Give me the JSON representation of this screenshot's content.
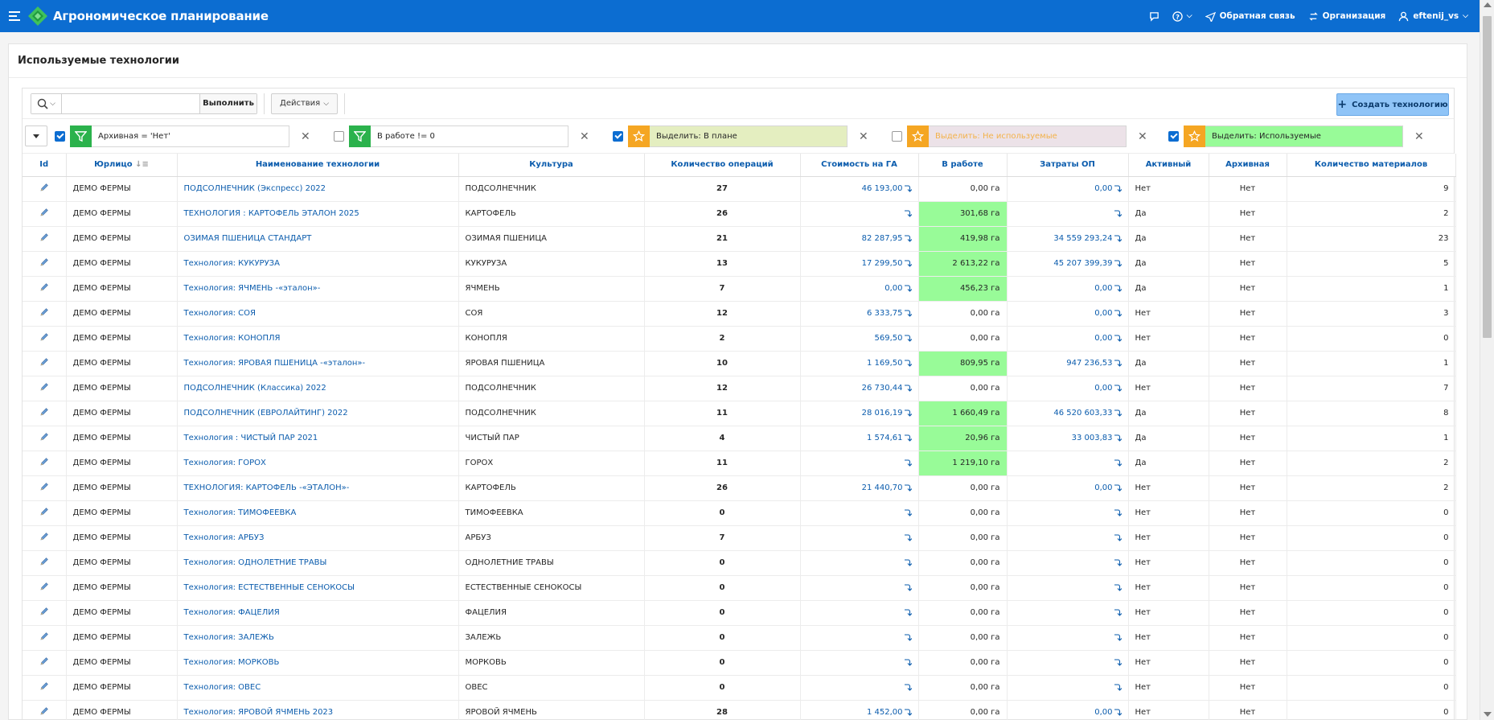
{
  "app": {
    "title": "Агрономическое планирование"
  },
  "topbar": {
    "feedback": "Обратная связь",
    "org": "Организация",
    "user": "eftenij_vs"
  },
  "region": {
    "title": "Используемые технологии"
  },
  "toolbar": {
    "search_placeholder": "",
    "go": "Выполнить",
    "actions": "Действия",
    "create": "Создать технологию"
  },
  "filters": [
    {
      "checked": true,
      "type": "filter",
      "text": "Архивная = 'Нет'",
      "bg": "#ffffff",
      "color": "#262626"
    },
    {
      "checked": false,
      "type": "filter",
      "text": "В работе != 0",
      "bg": "#ffffff",
      "color": "#262626"
    },
    {
      "checked": true,
      "type": "highlight",
      "text": "Выделить: В плане",
      "bg": "#e4eec0",
      "color": "#262626"
    },
    {
      "checked": false,
      "type": "highlight",
      "text": "Выделить: Не используемые",
      "bg": "#ece2e8",
      "color": "#f3b24a"
    },
    {
      "checked": true,
      "type": "highlight",
      "text": "Выделить: Используемые",
      "bg": "#98fb98",
      "color": "#262626"
    }
  ],
  "columns": [
    "Id",
    "Юрлицо",
    "Наименование технологии",
    "Культура",
    "Количество операций",
    "Стоимость на ГА",
    "В работе",
    "Затраты ОП",
    "Активный",
    "Архивная",
    "Количество материалов"
  ],
  "rows": [
    {
      "org": "ДЕМО ФЕРМЫ",
      "name": "ПОДСОЛНЕЧНИК (Экспресс) 2022",
      "crop": "ПОДСОЛНЕЧНИК",
      "ops": "27",
      "cost": "46 193,00",
      "work": "0,00 га",
      "hl": false,
      "exp": "0,00",
      "active": "Нет",
      "arch": "Нет",
      "mat": "9"
    },
    {
      "org": "ДЕМО ФЕРМЫ",
      "name": "ТЕХНОЛОГИЯ : КАРТОФЕЛЬ ЭТАЛОН 2025",
      "crop": "КАРТОФЕЛЬ",
      "ops": "26",
      "cost": "",
      "work": "301,68 га",
      "hl": true,
      "exp": "",
      "active": "Да",
      "arch": "Нет",
      "mat": "2"
    },
    {
      "org": "ДЕМО ФЕРМЫ",
      "name": "ОЗИМАЯ ПШЕНИЦА СТАНДАРТ",
      "crop": "ОЗИМАЯ ПШЕНИЦА",
      "ops": "21",
      "cost": "82 287,95",
      "work": "419,98 га",
      "hl": true,
      "exp": "34 559 293,24",
      "active": "Да",
      "arch": "Нет",
      "mat": "23"
    },
    {
      "org": "ДЕМО ФЕРМЫ",
      "name": "Технология: КУКУРУЗА",
      "crop": "КУКУРУЗА",
      "ops": "13",
      "cost": "17 299,50",
      "work": "2 613,22 га",
      "hl": true,
      "exp": "45 207 399,39",
      "active": "Да",
      "arch": "Нет",
      "mat": "5"
    },
    {
      "org": "ДЕМО ФЕРМЫ",
      "name": "Технология: ЯЧМЕНЬ -«эталон»-",
      "crop": "ЯЧМЕНЬ",
      "ops": "7",
      "cost": "0,00",
      "work": "456,23 га",
      "hl": true,
      "exp": "0,00",
      "active": "Да",
      "arch": "Нет",
      "mat": "1"
    },
    {
      "org": "ДЕМО ФЕРМЫ",
      "name": "Технология: СОЯ",
      "crop": "СОЯ",
      "ops": "12",
      "cost": "6 333,75",
      "work": "0,00 га",
      "hl": false,
      "exp": "0,00",
      "active": "Нет",
      "arch": "Нет",
      "mat": "3"
    },
    {
      "org": "ДЕМО ФЕРМЫ",
      "name": "Технология: КОНОПЛЯ",
      "crop": "КОНОПЛЯ",
      "ops": "2",
      "cost": "569,50",
      "work": "0,00 га",
      "hl": false,
      "exp": "0,00",
      "active": "Нет",
      "arch": "Нет",
      "mat": "0"
    },
    {
      "org": "ДЕМО ФЕРМЫ",
      "name": "Технология: ЯРОВАЯ ПШЕНИЦА -«эталон»-",
      "crop": "ЯРОВАЯ ПШЕНИЦА",
      "ops": "10",
      "cost": "1 169,50",
      "work": "809,95 га",
      "hl": true,
      "exp": "947 236,53",
      "active": "Да",
      "arch": "Нет",
      "mat": "1"
    },
    {
      "org": "ДЕМО ФЕРМЫ",
      "name": "ПОДСОЛНЕЧНИК (Классика) 2022",
      "crop": "ПОДСОЛНЕЧНИК",
      "ops": "12",
      "cost": "26 730,44",
      "work": "0,00 га",
      "hl": false,
      "exp": "0,00",
      "active": "Нет",
      "arch": "Нет",
      "mat": "7"
    },
    {
      "org": "ДЕМО ФЕРМЫ",
      "name": "ПОДСОЛНЕЧНИК (ЕВРОЛАЙТИНГ) 2022",
      "crop": "ПОДСОЛНЕЧНИК",
      "ops": "11",
      "cost": "28 016,19",
      "work": "1 660,49 га",
      "hl": true,
      "exp": "46 520 603,33",
      "active": "Да",
      "arch": "Нет",
      "mat": "8"
    },
    {
      "org": "ДЕМО ФЕРМЫ",
      "name": "Технология : ЧИСТЫЙ ПАР 2021",
      "crop": "ЧИСТЫЙ ПАР",
      "ops": "4",
      "cost": "1 574,61",
      "work": "20,96 га",
      "hl": true,
      "exp": "33 003,83",
      "active": "Да",
      "arch": "Нет",
      "mat": "1"
    },
    {
      "org": "ДЕМО ФЕРМЫ",
      "name": "Технология: ГОРОХ",
      "crop": "ГОРОХ",
      "ops": "11",
      "cost": "",
      "work": "1 219,10 га",
      "hl": true,
      "exp": "",
      "active": "Да",
      "arch": "Нет",
      "mat": "2"
    },
    {
      "org": "ДЕМО ФЕРМЫ",
      "name": "ТЕХНОЛОГИЯ: КАРТОФЕЛЬ -«ЭТАЛОН»-",
      "crop": "КАРТОФЕЛЬ",
      "ops": "26",
      "cost": "21 440,70",
      "work": "0,00 га",
      "hl": false,
      "exp": "0,00",
      "active": "Нет",
      "arch": "Нет",
      "mat": "2"
    },
    {
      "org": "ДЕМО ФЕРМЫ",
      "name": "Технология: ТИМОФЕЕВКА",
      "crop": "ТИМОФЕЕВКА",
      "ops": "0",
      "cost": "",
      "work": "0,00 га",
      "hl": false,
      "exp": "",
      "active": "Нет",
      "arch": "Нет",
      "mat": "0"
    },
    {
      "org": "ДЕМО ФЕРМЫ",
      "name": "Технология: АРБУЗ",
      "crop": "АРБУЗ",
      "ops": "7",
      "cost": "",
      "work": "0,00 га",
      "hl": false,
      "exp": "",
      "active": "Нет",
      "arch": "Нет",
      "mat": "0"
    },
    {
      "org": "ДЕМО ФЕРМЫ",
      "name": "Технология: ОДНОЛЕТНИЕ ТРАВЫ",
      "crop": "ОДНОЛЕТНИЕ ТРАВЫ",
      "ops": "0",
      "cost": "",
      "work": "0,00 га",
      "hl": false,
      "exp": "",
      "active": "Нет",
      "arch": "Нет",
      "mat": "0"
    },
    {
      "org": "ДЕМО ФЕРМЫ",
      "name": "Технология: ЕСТЕСТВЕННЫЕ СЕНОКОСЫ",
      "crop": "ЕСТЕСТВЕННЫЕ СЕНОКОСЫ",
      "ops": "0",
      "cost": "",
      "work": "0,00 га",
      "hl": false,
      "exp": "",
      "active": "Нет",
      "arch": "Нет",
      "mat": "0"
    },
    {
      "org": "ДЕМО ФЕРМЫ",
      "name": "Технология: ФАЦЕЛИЯ",
      "crop": "ФАЦЕЛИЯ",
      "ops": "0",
      "cost": "",
      "work": "0,00 га",
      "hl": false,
      "exp": "",
      "active": "Нет",
      "arch": "Нет",
      "mat": "0"
    },
    {
      "org": "ДЕМО ФЕРМЫ",
      "name": "Технология: ЗАЛЕЖЬ",
      "crop": "ЗАЛЕЖЬ",
      "ops": "0",
      "cost": "",
      "work": "0,00 га",
      "hl": false,
      "exp": "",
      "active": "Нет",
      "arch": "Нет",
      "mat": "0"
    },
    {
      "org": "ДЕМО ФЕРМЫ",
      "name": "Технология: МОРКОВЬ",
      "crop": "МОРКОВЬ",
      "ops": "0",
      "cost": "",
      "work": "0,00 га",
      "hl": false,
      "exp": "",
      "active": "Нет",
      "arch": "Нет",
      "mat": "0"
    },
    {
      "org": "ДЕМО ФЕРМЫ",
      "name": "Технология: ОВЕС",
      "crop": "ОВЕС",
      "ops": "0",
      "cost": "",
      "work": "0,00 га",
      "hl": false,
      "exp": "",
      "active": "Нет",
      "arch": "Нет",
      "mat": "0"
    },
    {
      "org": "ДЕМО ФЕРМЫ",
      "name": "Технология: ЯРОВОЙ ЯЧМЕНЬ 2023",
      "crop": "ЯРОВОЙ ЯЧМЕНЬ",
      "ops": "28",
      "cost": "1 452,00",
      "work": "0,00 га",
      "hl": false,
      "exp": "0,00",
      "active": "Нет",
      "arch": "Нет",
      "mat": "0"
    }
  ],
  "colors": {
    "header": "#0c6dd1",
    "link": "#0b5cad",
    "highlight": "#98fb98"
  }
}
